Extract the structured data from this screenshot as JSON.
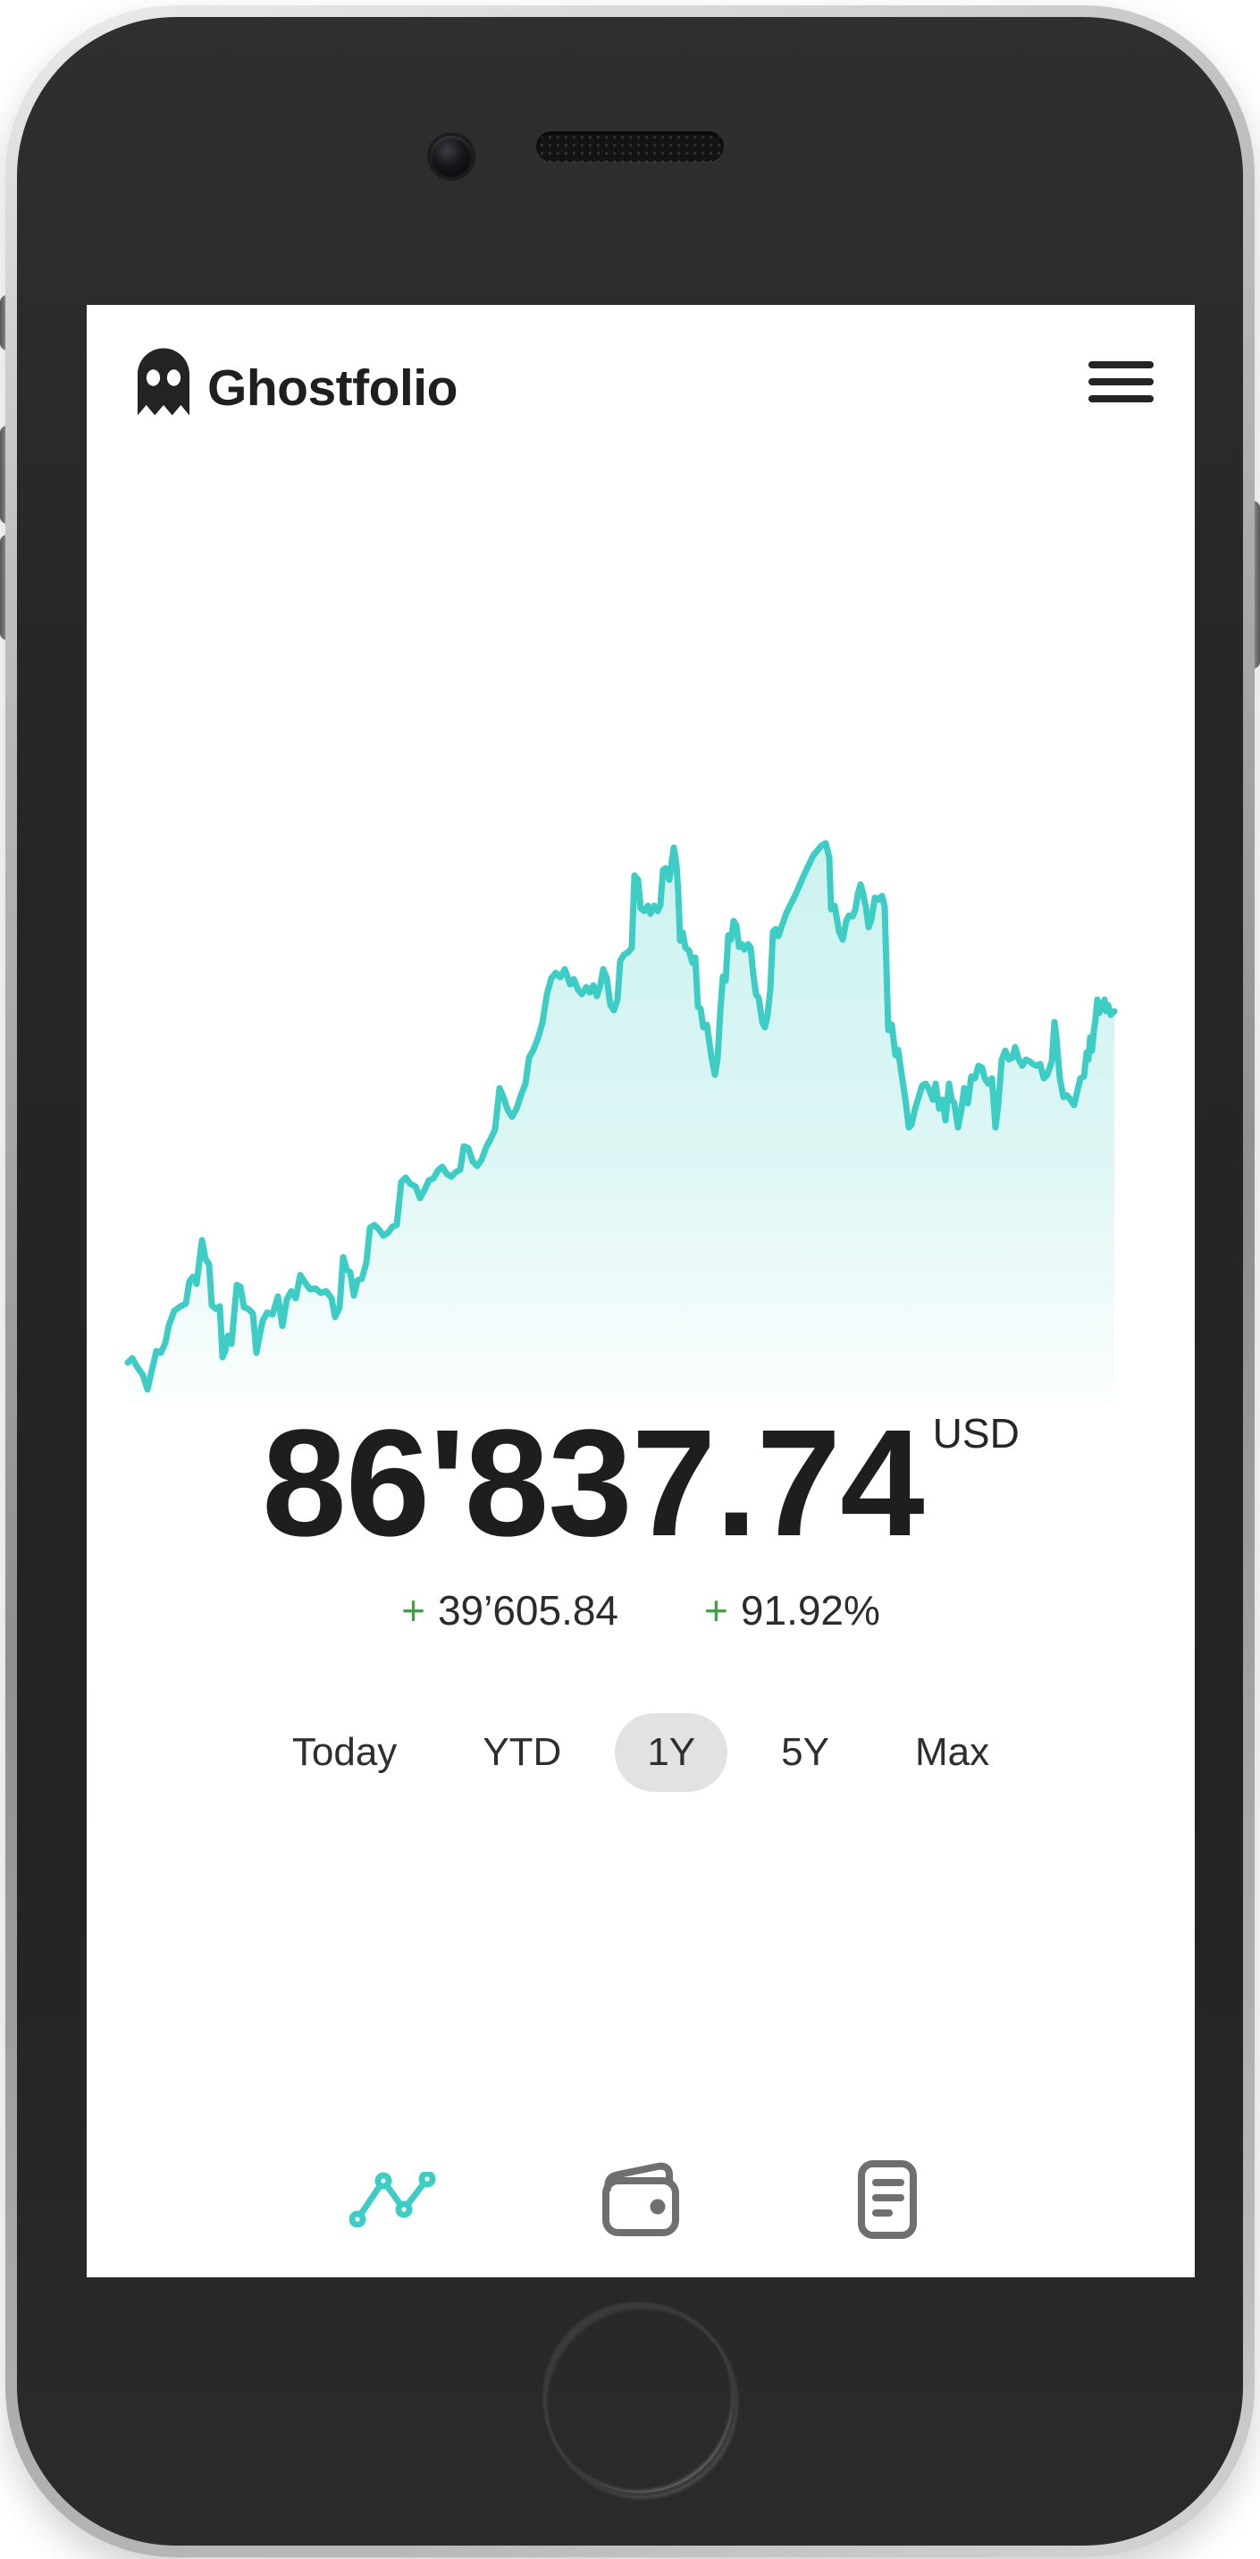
{
  "header": {
    "brand": "Ghostfolio",
    "menu_icon": "hamburger-icon"
  },
  "portfolio": {
    "value": "86'837.74",
    "currency": "USD",
    "change": {
      "sign": "+",
      "absolute": "39’605.84",
      "percent": "91.92%"
    }
  },
  "ranges": {
    "options": [
      "Today",
      "YTD",
      "1Y",
      "5Y",
      "Max"
    ],
    "selected": "1Y"
  },
  "nav": {
    "items": [
      {
        "name": "performance",
        "icon": "line-chart-icon",
        "active": true
      },
      {
        "name": "wallet",
        "icon": "wallet-icon",
        "active": false
      },
      {
        "name": "activities",
        "icon": "document-list-icon",
        "active": false
      }
    ]
  },
  "colors": {
    "accent": "#3ecdc5",
    "positive": "#43a047",
    "text": "#1e1e1e",
    "inactive_icon": "#6f6f6f",
    "pill_background": "#e2e2e2"
  },
  "chart_data": {
    "type": "area",
    "title": "",
    "xlabel": "",
    "ylabel": "",
    "legend": false,
    "grid": false,
    "axes_visible": false,
    "selected_range": "1Y",
    "line_color": "#3ecdc5",
    "note": "Sparkline of portfolio performance over 1Y; no axis labels shown. Points are in chart viewBox coordinates 1108x628, y increases downward.",
    "points": [
      [
        4,
        583
      ],
      [
        9,
        578
      ],
      [
        14,
        587
      ],
      [
        21,
        597
      ],
      [
        26,
        613
      ],
      [
        31,
        591
      ],
      [
        36,
        570
      ],
      [
        41,
        572
      ],
      [
        46,
        561
      ],
      [
        50,
        541
      ],
      [
        56,
        525
      ],
      [
        63,
        520
      ],
      [
        69,
        517
      ],
      [
        73,
        492
      ],
      [
        77,
        487
      ],
      [
        81,
        495
      ],
      [
        87,
        446
      ],
      [
        91,
        467
      ],
      [
        95,
        473
      ],
      [
        98,
        519
      ],
      [
        103,
        523
      ],
      [
        107,
        520
      ],
      [
        110,
        577
      ],
      [
        113,
        570
      ],
      [
        116,
        553
      ],
      [
        120,
        562
      ],
      [
        126,
        496
      ],
      [
        130,
        498
      ],
      [
        134,
        521
      ],
      [
        139,
        523
      ],
      [
        144,
        528
      ],
      [
        148,
        572
      ],
      [
        151,
        555
      ],
      [
        155,
        536
      ],
      [
        160,
        527
      ],
      [
        166,
        529
      ],
      [
        172,
        509
      ],
      [
        177,
        542
      ],
      [
        182,
        512
      ],
      [
        187,
        503
      ],
      [
        192,
        511
      ],
      [
        197,
        485
      ],
      [
        202,
        493
      ],
      [
        208,
        501
      ],
      [
        214,
        500
      ],
      [
        220,
        505
      ],
      [
        226,
        503
      ],
      [
        232,
        511
      ],
      [
        236,
        532
      ],
      [
        241,
        521
      ],
      [
        245,
        465
      ],
      [
        249,
        479
      ],
      [
        253,
        482
      ],
      [
        257,
        508
      ],
      [
        261,
        491
      ],
      [
        266,
        489
      ],
      [
        271,
        471
      ],
      [
        275,
        432
      ],
      [
        280,
        429
      ],
      [
        285,
        434
      ],
      [
        290,
        441
      ],
      [
        295,
        438
      ],
      [
        300,
        431
      ],
      [
        305,
        429
      ],
      [
        310,
        381
      ],
      [
        315,
        376
      ],
      [
        320,
        383
      ],
      [
        326,
        386
      ],
      [
        331,
        399
      ],
      [
        336,
        390
      ],
      [
        341,
        379
      ],
      [
        346,
        377
      ],
      [
        351,
        368
      ],
      [
        356,
        364
      ],
      [
        361,
        372
      ],
      [
        366,
        375
      ],
      [
        371,
        370
      ],
      [
        376,
        367
      ],
      [
        380,
        341
      ],
      [
        385,
        343
      ],
      [
        390,
        358
      ],
      [
        395,
        363
      ],
      [
        400,
        356
      ],
      [
        405,
        342
      ],
      [
        410,
        333
      ],
      [
        415,
        322
      ],
      [
        420,
        276
      ],
      [
        424,
        285
      ],
      [
        429,
        300
      ],
      [
        434,
        308
      ],
      [
        439,
        299
      ],
      [
        444,
        284
      ],
      [
        449,
        271
      ],
      [
        453,
        242
      ],
      [
        458,
        233
      ],
      [
        463,
        220
      ],
      [
        468,
        203
      ],
      [
        473,
        171
      ],
      [
        478,
        153
      ],
      [
        483,
        147
      ],
      [
        488,
        152
      ],
      [
        493,
        143
      ],
      [
        499,
        160
      ],
      [
        503,
        154
      ],
      [
        508,
        166
      ],
      [
        512,
        171
      ],
      [
        517,
        163
      ],
      [
        521,
        169
      ],
      [
        525,
        161
      ],
      [
        529,
        173
      ],
      [
        533,
        160
      ],
      [
        536,
        143
      ],
      [
        540,
        153
      ],
      [
        544,
        183
      ],
      [
        548,
        189
      ],
      [
        552,
        177
      ],
      [
        555,
        134
      ],
      [
        559,
        127
      ],
      [
        564,
        124
      ],
      [
        568,
        119
      ],
      [
        571,
        38
      ],
      [
        575,
        43
      ],
      [
        578,
        75
      ],
      [
        582,
        78
      ],
      [
        586,
        72
      ],
      [
        589,
        81
      ],
      [
        593,
        72
      ],
      [
        597,
        78
      ],
      [
        600,
        71
      ],
      [
        603,
        32
      ],
      [
        606,
        30
      ],
      [
        610,
        43
      ],
      [
        615,
        7
      ],
      [
        618,
        26
      ],
      [
        620,
        57
      ],
      [
        622,
        111
      ],
      [
        625,
        102
      ],
      [
        628,
        119
      ],
      [
        632,
        122
      ],
      [
        636,
        136
      ],
      [
        639,
        130
      ],
      [
        642,
        185
      ],
      [
        645,
        187
      ],
      [
        648,
        208
      ],
      [
        652,
        205
      ],
      [
        657,
        240
      ],
      [
        661,
        261
      ],
      [
        664,
        243
      ],
      [
        667,
        191
      ],
      [
        670,
        151
      ],
      [
        673,
        156
      ],
      [
        676,
        105
      ],
      [
        679,
        110
      ],
      [
        682,
        89
      ],
      [
        685,
        94
      ],
      [
        688,
        118
      ],
      [
        691,
        115
      ],
      [
        694,
        121
      ],
      [
        698,
        115
      ],
      [
        701,
        119
      ],
      [
        704,
        149
      ],
      [
        707,
        171
      ],
      [
        710,
        175
      ],
      [
        714,
        202
      ],
      [
        717,
        208
      ],
      [
        720,
        194
      ],
      [
        723,
        166
      ],
      [
        726,
        101
      ],
      [
        729,
        98
      ],
      [
        732,
        106
      ],
      [
        741,
        80
      ],
      [
        751,
        60
      ],
      [
        761,
        37
      ],
      [
        771,
        16
      ],
      [
        780,
        5
      ],
      [
        785,
        2
      ],
      [
        789,
        18
      ],
      [
        791,
        76
      ],
      [
        795,
        72
      ],
      [
        800,
        101
      ],
      [
        804,
        110
      ],
      [
        808,
        89
      ],
      [
        811,
        83
      ],
      [
        815,
        84
      ],
      [
        818,
        77
      ],
      [
        821,
        59
      ],
      [
        824,
        48
      ],
      [
        827,
        59
      ],
      [
        830,
        74
      ],
      [
        833,
        96
      ],
      [
        836,
        88
      ],
      [
        840,
        63
      ],
      [
        844,
        65
      ],
      [
        848,
        61
      ],
      [
        851,
        73
      ],
      [
        855,
        211
      ],
      [
        859,
        205
      ],
      [
        863,
        239
      ],
      [
        866,
        233
      ],
      [
        870,
        261
      ],
      [
        874,
        287
      ],
      [
        878,
        320
      ],
      [
        881,
        317
      ],
      [
        885,
        299
      ],
      [
        889,
        286
      ],
      [
        893,
        273
      ],
      [
        897,
        271
      ],
      [
        901,
        278
      ],
      [
        905,
        289
      ],
      [
        908,
        271
      ],
      [
        912,
        299
      ],
      [
        916,
        289
      ],
      [
        919,
        312
      ],
      [
        923,
        271
      ],
      [
        926,
        289
      ],
      [
        929,
        293
      ],
      [
        933,
        320
      ],
      [
        937,
        299
      ],
      [
        940,
        276
      ],
      [
        944,
        293
      ],
      [
        948,
        263
      ],
      [
        952,
        265
      ],
      [
        956,
        251
      ],
      [
        960,
        253
      ],
      [
        963,
        265
      ],
      [
        967,
        271
      ],
      [
        971,
        265
      ],
      [
        975,
        320
      ],
      [
        978,
        295
      ],
      [
        982,
        244
      ],
      [
        986,
        234
      ],
      [
        990,
        244
      ],
      [
        994,
        242
      ],
      [
        997,
        230
      ],
      [
        1001,
        244
      ],
      [
        1005,
        251
      ],
      [
        1009,
        244
      ],
      [
        1013,
        246
      ],
      [
        1017,
        249
      ],
      [
        1021,
        251
      ],
      [
        1025,
        249
      ],
      [
        1029,
        265
      ],
      [
        1033,
        261
      ],
      [
        1038,
        246
      ],
      [
        1041,
        202
      ],
      [
        1043,
        218
      ],
      [
        1047,
        265
      ],
      [
        1051,
        286
      ],
      [
        1055,
        284
      ],
      [
        1059,
        289
      ],
      [
        1063,
        295
      ],
      [
        1066,
        282
      ],
      [
        1070,
        265
      ],
      [
        1074,
        263
      ],
      [
        1077,
        236
      ],
      [
        1079,
        244
      ],
      [
        1081,
        219
      ],
      [
        1083,
        234
      ],
      [
        1085,
        213
      ],
      [
        1087,
        198
      ],
      [
        1089,
        177
      ],
      [
        1091,
        192
      ],
      [
        1093,
        181
      ],
      [
        1095,
        188
      ],
      [
        1097,
        177
      ],
      [
        1099,
        190
      ],
      [
        1101,
        183
      ],
      [
        1104,
        194
      ],
      [
        1108,
        190
      ]
    ]
  }
}
